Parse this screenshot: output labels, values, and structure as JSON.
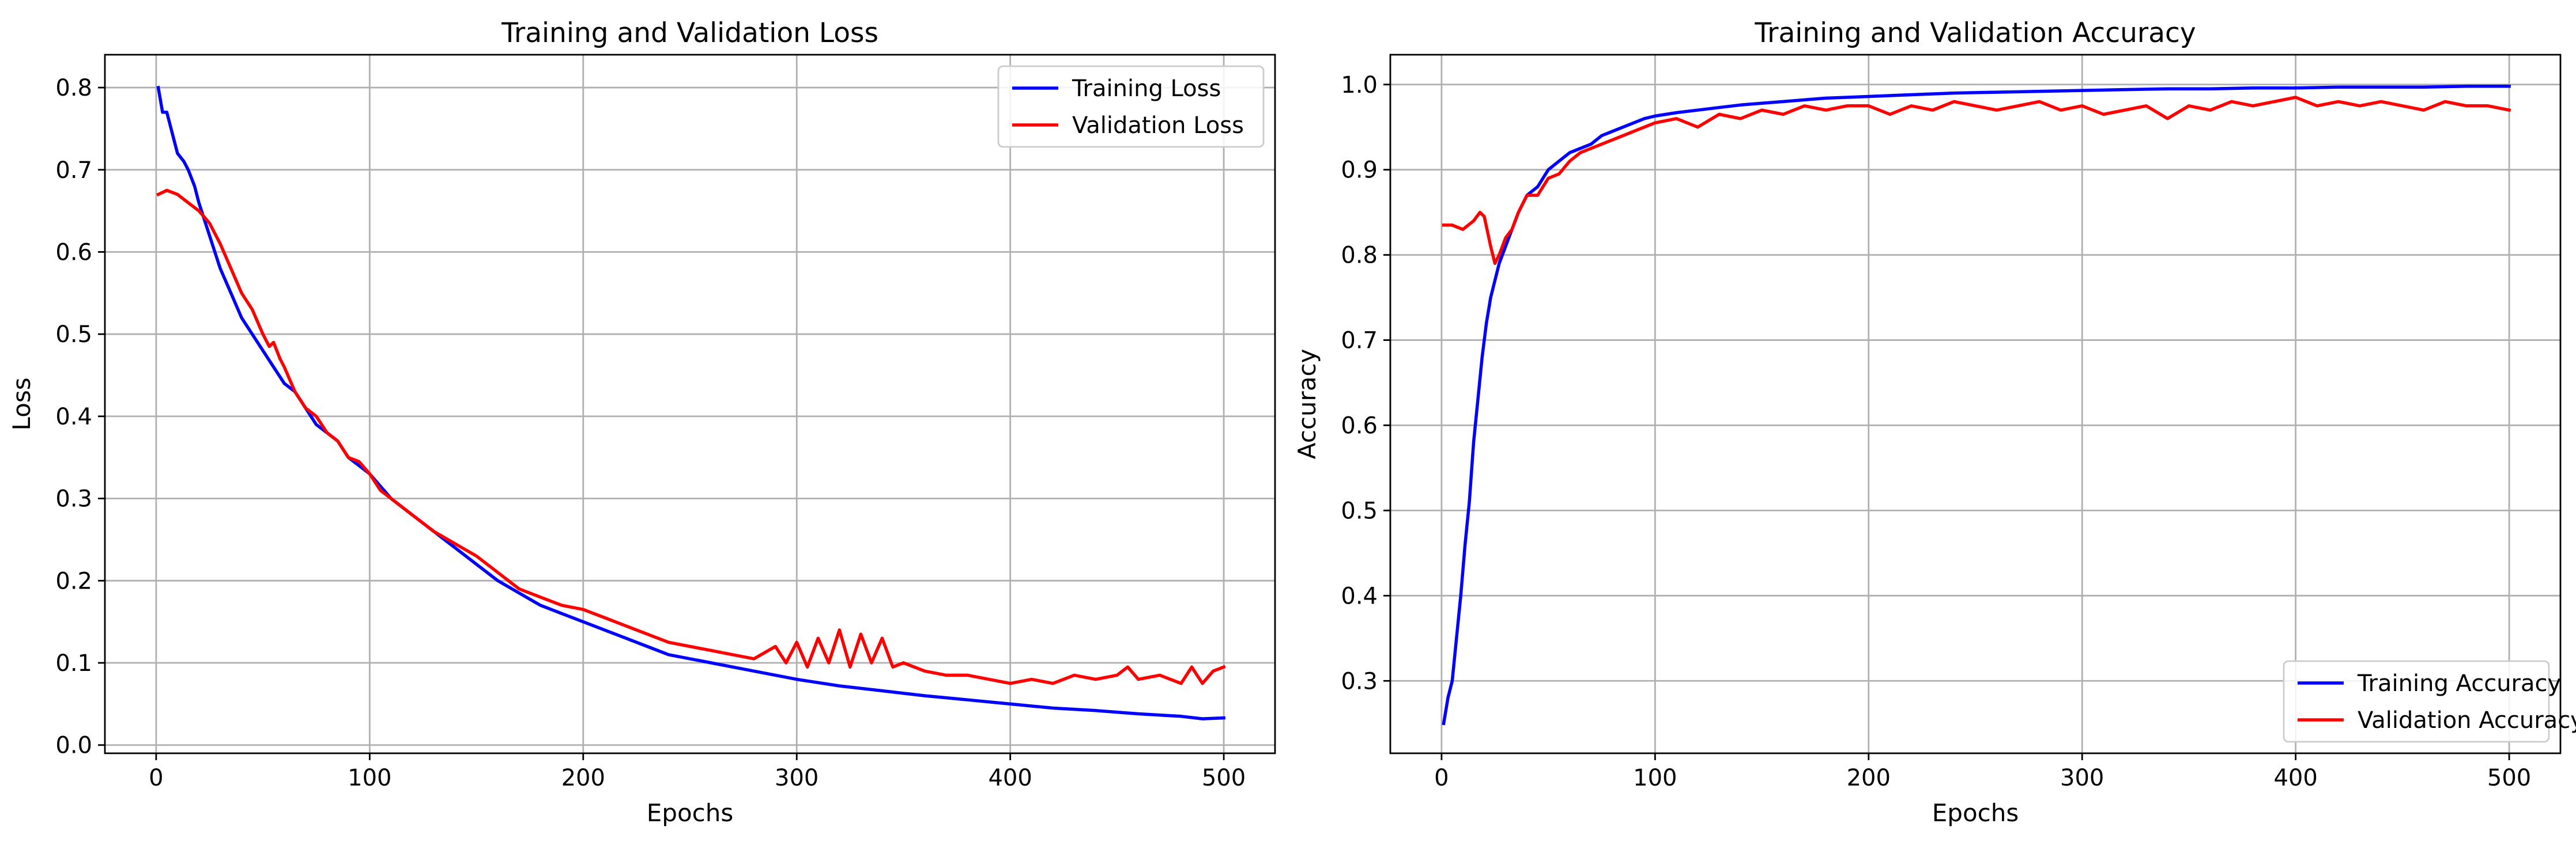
{
  "chart_data": [
    {
      "type": "line",
      "title": "Training and Validation Loss",
      "xlabel": "Epochs",
      "ylabel": "Loss",
      "xlim": [
        -24,
        524
      ],
      "ylim": [
        -0.01,
        0.84
      ],
      "xticks": [
        0,
        100,
        200,
        300,
        400,
        500
      ],
      "yticks": [
        0.0,
        0.1,
        0.2,
        0.3,
        0.4,
        0.5,
        0.6,
        0.7,
        0.8
      ],
      "xtick_labels": [
        "0",
        "100",
        "200",
        "300",
        "400",
        "500"
      ],
      "ytick_labels": [
        "0.0",
        "0.1",
        "0.2",
        "0.3",
        "0.4",
        "0.5",
        "0.6",
        "0.7",
        "0.8"
      ],
      "grid": true,
      "legend_loc": "upper right",
      "series": [
        {
          "name": "Training Loss",
          "color": "#0000ff",
          "x": [
            1,
            3,
            5,
            8,
            10,
            13,
            15,
            18,
            20,
            25,
            30,
            35,
            40,
            45,
            50,
            55,
            60,
            65,
            70,
            75,
            80,
            85,
            90,
            95,
            100,
            110,
            120,
            130,
            140,
            150,
            160,
            170,
            180,
            190,
            200,
            210,
            220,
            230,
            240,
            250,
            260,
            270,
            280,
            290,
            300,
            320,
            340,
            360,
            380,
            400,
            420,
            440,
            460,
            480,
            490,
            500
          ],
          "y": [
            0.8,
            0.77,
            0.77,
            0.74,
            0.72,
            0.71,
            0.7,
            0.68,
            0.66,
            0.62,
            0.58,
            0.55,
            0.52,
            0.5,
            0.48,
            0.46,
            0.44,
            0.43,
            0.41,
            0.39,
            0.38,
            0.37,
            0.35,
            0.34,
            0.33,
            0.3,
            0.28,
            0.26,
            0.24,
            0.22,
            0.2,
            0.185,
            0.17,
            0.16,
            0.15,
            0.14,
            0.13,
            0.12,
            0.11,
            0.105,
            0.1,
            0.095,
            0.09,
            0.085,
            0.08,
            0.072,
            0.066,
            0.06,
            0.055,
            0.05,
            0.045,
            0.042,
            0.038,
            0.035,
            0.032,
            0.033
          ]
        },
        {
          "name": "Validation Loss",
          "color": "#ff0000",
          "x": [
            1,
            5,
            10,
            15,
            20,
            25,
            30,
            35,
            40,
            45,
            50,
            53,
            55,
            58,
            60,
            65,
            70,
            75,
            80,
            85,
            90,
            95,
            100,
            105,
            110,
            115,
            120,
            130,
            140,
            150,
            160,
            170,
            180,
            190,
            200,
            210,
            220,
            230,
            240,
            250,
            260,
            270,
            280,
            290,
            295,
            300,
            305,
            310,
            315,
            320,
            325,
            330,
            335,
            340,
            345,
            350,
            360,
            370,
            380,
            390,
            400,
            410,
            420,
            430,
            440,
            450,
            455,
            460,
            470,
            480,
            485,
            490,
            495,
            500
          ],
          "y": [
            0.67,
            0.675,
            0.67,
            0.66,
            0.65,
            0.635,
            0.61,
            0.58,
            0.55,
            0.53,
            0.5,
            0.485,
            0.49,
            0.47,
            0.46,
            0.43,
            0.41,
            0.4,
            0.38,
            0.37,
            0.35,
            0.345,
            0.33,
            0.31,
            0.3,
            0.29,
            0.28,
            0.26,
            0.245,
            0.23,
            0.21,
            0.19,
            0.18,
            0.17,
            0.165,
            0.155,
            0.145,
            0.135,
            0.125,
            0.12,
            0.115,
            0.11,
            0.105,
            0.12,
            0.1,
            0.125,
            0.095,
            0.13,
            0.1,
            0.14,
            0.095,
            0.135,
            0.1,
            0.13,
            0.095,
            0.1,
            0.09,
            0.085,
            0.085,
            0.08,
            0.075,
            0.08,
            0.075,
            0.085,
            0.08,
            0.085,
            0.095,
            0.08,
            0.085,
            0.075,
            0.095,
            0.075,
            0.09,
            0.095
          ]
        }
      ]
    },
    {
      "type": "line",
      "title": "Training and Validation Accuracy",
      "xlabel": "Epochs",
      "ylabel": "Accuracy",
      "xlim": [
        -24,
        524
      ],
      "ylim": [
        0.215,
        1.035
      ],
      "xticks": [
        0,
        100,
        200,
        300,
        400,
        500
      ],
      "yticks": [
        0.3,
        0.4,
        0.5,
        0.6,
        0.7,
        0.8,
        0.9,
        1.0
      ],
      "xtick_labels": [
        "0",
        "100",
        "200",
        "300",
        "400",
        "500"
      ],
      "ytick_labels": [
        "0.3",
        "0.4",
        "0.5",
        "0.6",
        "0.7",
        "0.8",
        "0.9",
        "1.0"
      ],
      "grid": true,
      "legend_loc": "lower right",
      "series": [
        {
          "name": "Training Accuracy",
          "color": "#0000ff",
          "x": [
            1,
            3,
            5,
            7,
            9,
            11,
            13,
            15,
            17,
            19,
            21,
            23,
            25,
            27,
            30,
            33,
            36,
            40,
            45,
            50,
            55,
            60,
            65,
            70,
            75,
            80,
            85,
            90,
            95,
            100,
            110,
            120,
            130,
            140,
            150,
            160,
            170,
            180,
            190,
            200,
            220,
            240,
            260,
            280,
            300,
            320,
            340,
            360,
            380,
            400,
            420,
            440,
            460,
            480,
            500
          ],
          "y": [
            0.25,
            0.28,
            0.3,
            0.35,
            0.4,
            0.46,
            0.51,
            0.58,
            0.63,
            0.68,
            0.72,
            0.75,
            0.77,
            0.79,
            0.81,
            0.83,
            0.85,
            0.87,
            0.88,
            0.9,
            0.91,
            0.92,
            0.925,
            0.93,
            0.94,
            0.945,
            0.95,
            0.955,
            0.96,
            0.963,
            0.967,
            0.97,
            0.973,
            0.976,
            0.978,
            0.98,
            0.982,
            0.984,
            0.985,
            0.986,
            0.988,
            0.99,
            0.991,
            0.992,
            0.993,
            0.994,
            0.995,
            0.995,
            0.996,
            0.996,
            0.997,
            0.997,
            0.997,
            0.998,
            0.998
          ]
        },
        {
          "name": "Validation Accuracy",
          "color": "#ff0000",
          "x": [
            1,
            5,
            10,
            15,
            18,
            20,
            23,
            25,
            27,
            30,
            33,
            36,
            40,
            45,
            50,
            55,
            60,
            65,
            70,
            80,
            90,
            100,
            110,
            120,
            130,
            140,
            150,
            160,
            170,
            180,
            190,
            200,
            210,
            220,
            230,
            240,
            250,
            260,
            270,
            280,
            290,
            300,
            310,
            320,
            330,
            340,
            350,
            360,
            370,
            380,
            390,
            400,
            410,
            420,
            430,
            440,
            450,
            460,
            470,
            480,
            490,
            500
          ],
          "y": [
            0.835,
            0.835,
            0.83,
            0.84,
            0.85,
            0.845,
            0.81,
            0.79,
            0.8,
            0.82,
            0.83,
            0.85,
            0.87,
            0.87,
            0.89,
            0.895,
            0.91,
            0.92,
            0.925,
            0.935,
            0.945,
            0.955,
            0.96,
            0.95,
            0.965,
            0.96,
            0.97,
            0.965,
            0.975,
            0.97,
            0.975,
            0.975,
            0.965,
            0.975,
            0.97,
            0.98,
            0.975,
            0.97,
            0.975,
            0.98,
            0.97,
            0.975,
            0.965,
            0.97,
            0.975,
            0.96,
            0.975,
            0.97,
            0.98,
            0.975,
            0.98,
            0.985,
            0.975,
            0.98,
            0.975,
            0.98,
            0.975,
            0.97,
            0.98,
            0.975,
            0.975,
            0.97
          ]
        }
      ]
    }
  ]
}
